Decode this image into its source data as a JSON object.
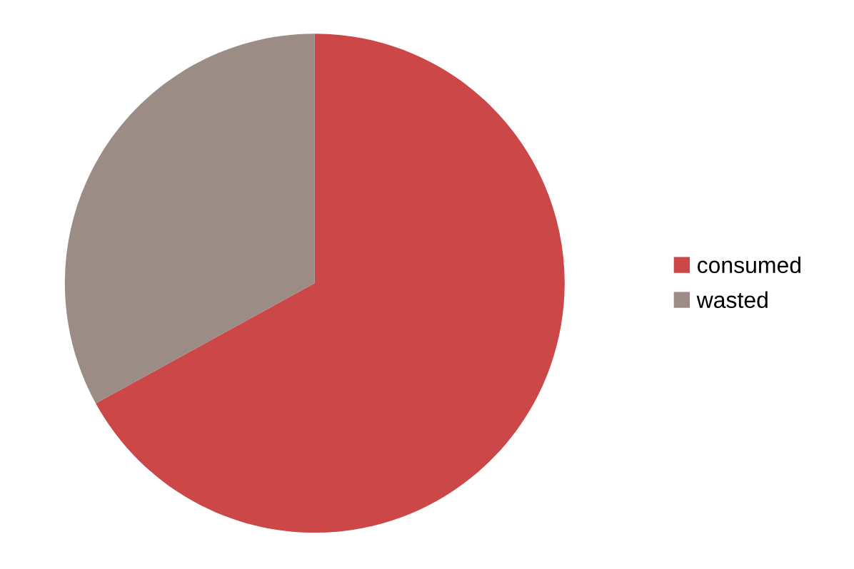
{
  "chart_data": {
    "type": "pie",
    "categories": [
      "consumed",
      "wasted"
    ],
    "values": [
      67,
      33
    ],
    "colors": [
      "#cc4747",
      "#9b8c85"
    ],
    "legend": "right"
  }
}
